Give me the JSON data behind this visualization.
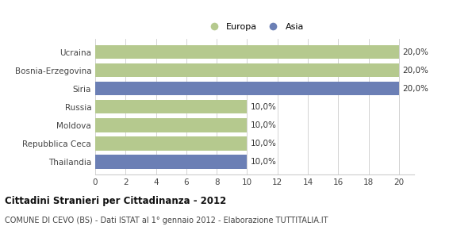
{
  "categories": [
    "Ucraina",
    "Bosnia-Erzegovina",
    "Siria",
    "Russia",
    "Moldova",
    "Repubblica Ceca",
    "Thailandia"
  ],
  "values": [
    20.0,
    20.0,
    20.0,
    10.0,
    10.0,
    10.0,
    10.0
  ],
  "colors": [
    "#b5c98e",
    "#b5c98e",
    "#6b7fb5",
    "#b5c98e",
    "#b5c98e",
    "#b5c98e",
    "#6b7fb5"
  ],
  "legend": [
    {
      "label": "Europa",
      "color": "#b5c98e"
    },
    {
      "label": "Asia",
      "color": "#6b7fb5"
    }
  ],
  "xlim": [
    0,
    21
  ],
  "xticks": [
    0,
    2,
    4,
    6,
    8,
    10,
    12,
    14,
    16,
    18,
    20
  ],
  "title": "Cittadini Stranieri per Cittadinanza - 2012",
  "subtitle": "COMUNE DI CEVO (BS) - Dati ISTAT al 1° gennaio 2012 - Elaborazione TUTTITALIA.IT",
  "bar_height": 0.75,
  "background_color": "#ffffff",
  "grid_color": "#cccccc",
  "label_fontsize": 7.5,
  "title_fontsize": 8.5,
  "subtitle_fontsize": 7.0,
  "legend_fontsize": 8,
  "value_fontsize": 7.5
}
